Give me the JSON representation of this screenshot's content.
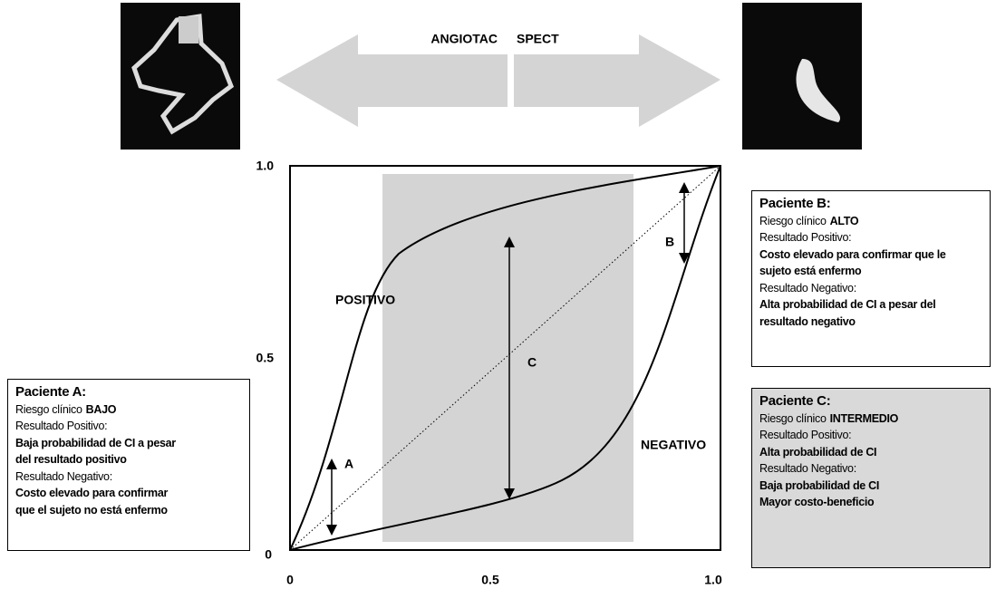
{
  "arrows": {
    "left": "ANGIOTAC",
    "right": "SPECT"
  },
  "axes": {
    "y_ticks": [
      "1.0",
      "0.5",
      "0"
    ],
    "x_ticks": [
      "0",
      "0.5",
      "1.0"
    ]
  },
  "plot_labels": {
    "positive": "POSITIVO",
    "negative": "NEGATIVO",
    "a": "A",
    "b": "B",
    "c": "C"
  },
  "patients": [
    {
      "title": "Paciente A:",
      "risk_label": "Riesgo clínico",
      "risk_level": "BAJO",
      "positive_label": "Resultado Positivo:",
      "positive_text": [
        "Baja probabilidad de CI a pesar",
        "del resultado positivo"
      ],
      "negative_label": "Resultado Negativo:",
      "negative_text": [
        "Costo elevado para confirmar",
        "que el sujeto no está enfermo"
      ]
    },
    {
      "title": "Paciente B:",
      "risk_label": "Riesgo clínico",
      "risk_level": "ALTO",
      "positive_label": "Resultado Positivo:",
      "positive_text": [
        "Costo elevado para confirmar que le",
        "sujeto está enfermo"
      ],
      "negative_label": "Resultado Negativo:",
      "negative_text": [
        "Alta probabilidad de CI a pesar del",
        "resultado negativo"
      ]
    },
    {
      "title": "Paciente C:",
      "risk_label": "Riesgo clínico",
      "risk_level": "INTERMEDIO",
      "positive_label": "Resultado Positivo:",
      "positive_text": [
        "Alta probabilidad de CI"
      ],
      "negative_label": "Resultado Negativo:",
      "negative_text": [
        "Baja probabilidad de CI",
        "Mayor costo-beneficio"
      ]
    }
  ]
}
